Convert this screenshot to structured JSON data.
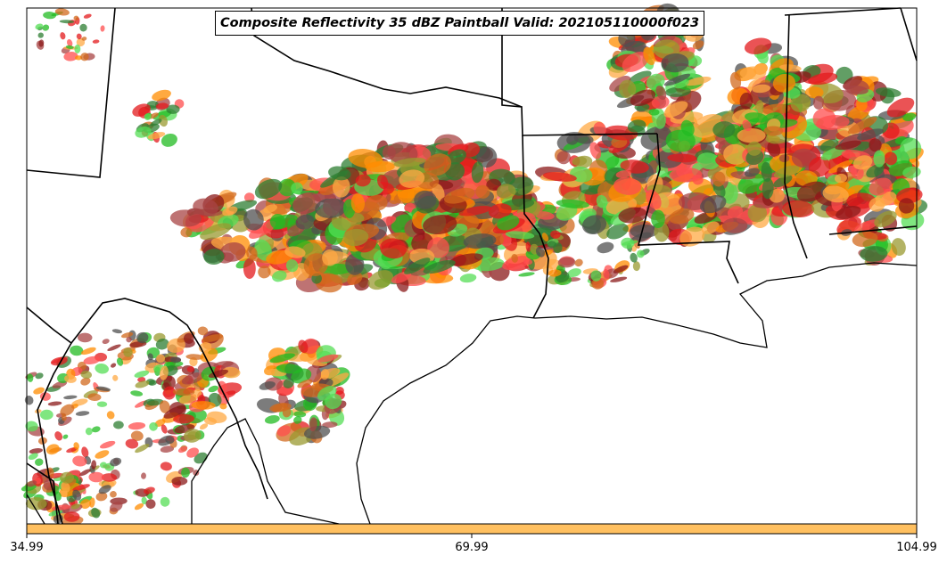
{
  "title": "Composite Reflectivity 35 dBZ Paintball Valid: 202105110000f023",
  "colorbar": {
    "color": "#ffc060",
    "ticks": [
      "34.99",
      "69.99",
      "104.99"
    ]
  },
  "member_colors": [
    "#e31a1c",
    "#ff4d4d",
    "#ff8c00",
    "#ffaa44",
    "#22bb22",
    "#55dd55",
    "#9a9a30",
    "#8b1a1a",
    "#a84444",
    "#505050",
    "#2e7d32",
    "#d2691e"
  ]
}
